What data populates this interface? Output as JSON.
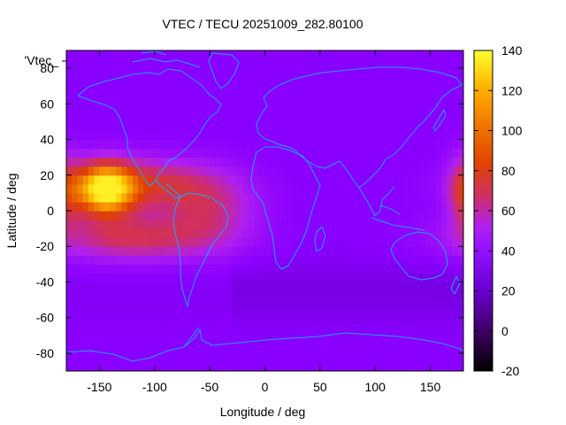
{
  "chart_data": {
    "type": "heatmap",
    "title": "VTEC / TECU 20251009_282.80100",
    "xlabel": "Longitude / deg",
    "ylabel": "Latitude / deg",
    "key_label": "'Vtec_",
    "xlim": [
      -180,
      180
    ],
    "ylim": [
      -90,
      90
    ],
    "x_ticks": [
      -150,
      -100,
      -50,
      0,
      50,
      100,
      150
    ],
    "y_ticks": [
      -80,
      -60,
      -40,
      -20,
      0,
      20,
      40,
      60,
      80
    ],
    "colorbar": {
      "range": [
        -20,
        140
      ],
      "ticks": [
        -20,
        0,
        20,
        40,
        60,
        80,
        100,
        120,
        140
      ],
      "palette": [
        "#000000",
        "#5000a0",
        "#8a00ff",
        "#b020f0",
        "#d03060",
        "#e04000",
        "#f08000",
        "#ffc000",
        "#ffff30"
      ]
    },
    "field": {
      "background_vtec": 20,
      "features": [
        {
          "name": "equatorial-crest-pacific",
          "lon": -145,
          "lat": 12,
          "peak_vtec": 125
        },
        {
          "name": "equatorial-band-north",
          "lon": -110,
          "lat": 15,
          "peak_vtec": 80
        },
        {
          "name": "equatorial-band-south",
          "lon": -120,
          "lat": -15,
          "peak_vtec": 75
        },
        {
          "name": "equatorial-band-atlantic",
          "lon": -50,
          "lat": 0,
          "peak_vtec": 70
        },
        {
          "name": "east-edge-crest",
          "lon": 180,
          "lat": 10,
          "peak_vtec": 70
        }
      ]
    }
  }
}
